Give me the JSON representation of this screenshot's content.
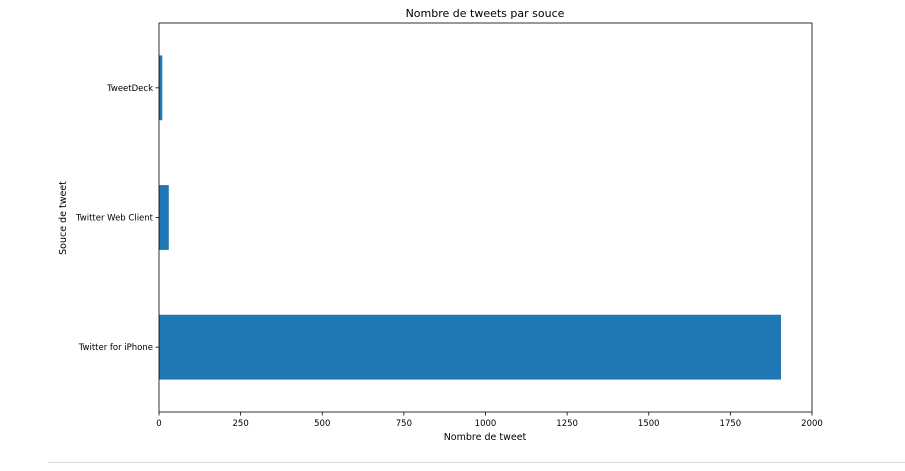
{
  "chart_data": {
    "type": "bar",
    "orientation": "horizontal",
    "title": "Nombre de tweets par souce",
    "xlabel": "Nombre de tweet",
    "ylabel": "Souce de tweet",
    "categories": [
      "Twitter for iPhone",
      "Twitter Web Client",
      "TweetDeck"
    ],
    "values": [
      1905,
      30,
      10
    ],
    "xlim": [
      0,
      2000
    ],
    "xticks": [
      0,
      250,
      500,
      750,
      1000,
      1250,
      1500,
      1750,
      2000
    ],
    "grid": false,
    "legend": "none",
    "colors": {
      "bar": "#1f77b4",
      "axes": "#000000"
    }
  }
}
